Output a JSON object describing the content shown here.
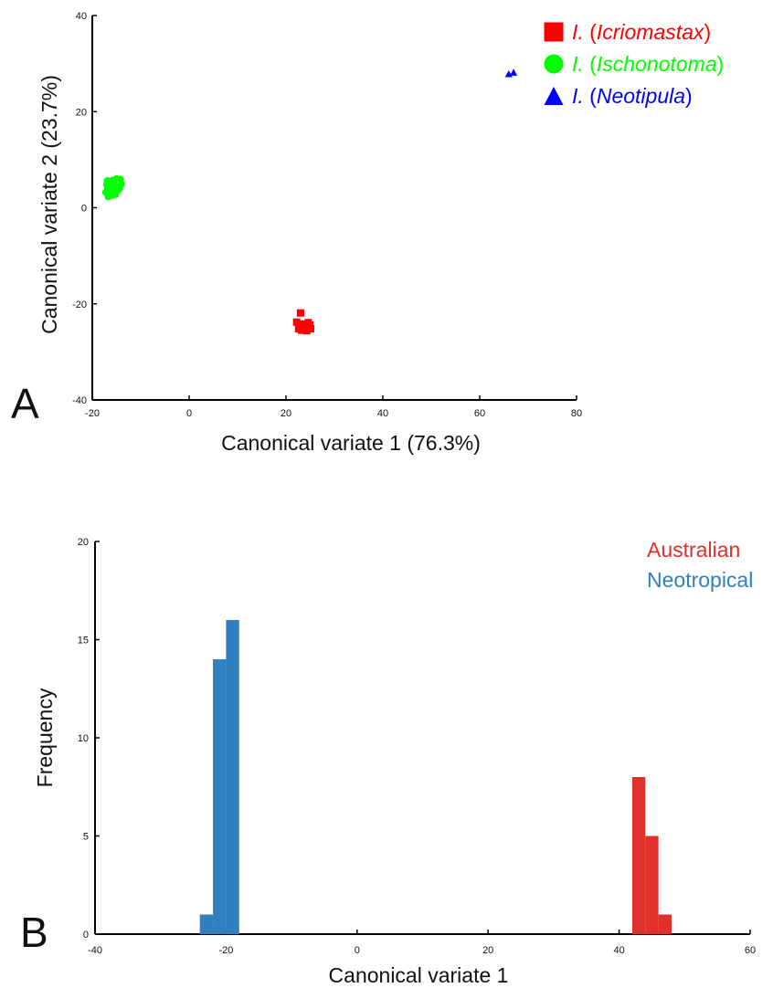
{
  "panels": {
    "a_label": "A",
    "b_label": "B"
  },
  "chart_data": [
    {
      "type": "scatter",
      "panel": "A",
      "xlabel": "Canonical variate 1 (76.3%)",
      "ylabel": "Canonical variate 2 (23.7%)",
      "xlim": [
        -20,
        80
      ],
      "ylim": [
        -40,
        40
      ],
      "xticks": [
        "-20",
        "0",
        "20",
        "40",
        "60",
        "80"
      ],
      "yticks": [
        "-40",
        "-20",
        "0",
        "20",
        "40"
      ],
      "legend_position": "top-right",
      "series": [
        {
          "name": "I. (Icriomastax)",
          "legend_main": "I.",
          "legend_sub": "Icriomastax",
          "color": "#ff0000",
          "marker": "square",
          "points": [
            [
              22.2,
              -23.8
            ],
            [
              23.0,
              -21.9
            ],
            [
              23.5,
              -24.2
            ],
            [
              22.8,
              -24.8
            ],
            [
              23.2,
              -25.5
            ],
            [
              24.0,
              -24.6
            ],
            [
              24.6,
              -23.9
            ],
            [
              25.1,
              -25.2
            ],
            [
              24.3,
              -25.6
            ],
            [
              23.7,
              -25.0
            ],
            [
              22.6,
              -25.2
            ],
            [
              24.9,
              -24.4
            ]
          ]
        },
        {
          "name": "I. (Ischonotoma)",
          "legend_main": "I.",
          "legend_sub": "Ischonotoma",
          "color": "#00ff00",
          "marker": "circle",
          "points": [
            [
              -17.0,
              4.8
            ],
            [
              -16.5,
              5.3
            ],
            [
              -15.8,
              5.7
            ],
            [
              -15.0,
              6.0
            ],
            [
              -14.2,
              5.9
            ],
            [
              -16.8,
              3.9
            ],
            [
              -16.0,
              4.2
            ],
            [
              -15.3,
              4.6
            ],
            [
              -14.6,
              4.3
            ],
            [
              -14.0,
              4.9
            ],
            [
              -17.2,
              3.2
            ],
            [
              -16.3,
              3.0
            ],
            [
              -15.5,
              3.3
            ],
            [
              -14.8,
              3.6
            ],
            [
              -16.7,
              2.3
            ],
            [
              -15.9,
              2.6
            ],
            [
              -15.2,
              2.8
            ],
            [
              -14.4,
              4.0
            ],
            [
              -15.7,
              5.0
            ],
            [
              -16.9,
              5.6
            ]
          ]
        },
        {
          "name": "I. (Neotipula)",
          "legend_main": "I.",
          "legend_sub": "Neotipula",
          "color": "#0000ff",
          "marker": "triangle",
          "points": [
            [
              66.0,
              27.9
            ],
            [
              67.0,
              28.2
            ]
          ]
        }
      ]
    },
    {
      "type": "bar",
      "subtype": "histogram",
      "panel": "B",
      "xlabel": "Canonical variate 1",
      "ylabel": "Frequency",
      "xlim": [
        -40,
        60
      ],
      "ylim": [
        0,
        20
      ],
      "xticks": [
        "-40",
        "-20",
        "0",
        "20",
        "40",
        "60"
      ],
      "yticks": [
        "0",
        "5",
        "10",
        "15",
        "20"
      ],
      "legend_position": "top-right",
      "series": [
        {
          "name": "Neotropical",
          "color": "#2f7fc1",
          "bins": [
            {
              "x0": -24,
              "x1": -22,
              "count": 1
            },
            {
              "x0": -22,
              "x1": -20,
              "count": 14
            },
            {
              "x0": -20,
              "x1": -18,
              "count": 16
            }
          ]
        },
        {
          "name": "Australian",
          "color": "#e0302a",
          "bins": [
            {
              "x0": 42,
              "x1": 44,
              "count": 8
            },
            {
              "x0": 44,
              "x1": 46,
              "count": 5
            },
            {
              "x0": 46,
              "x1": 48,
              "count": 1
            }
          ]
        }
      ]
    }
  ]
}
